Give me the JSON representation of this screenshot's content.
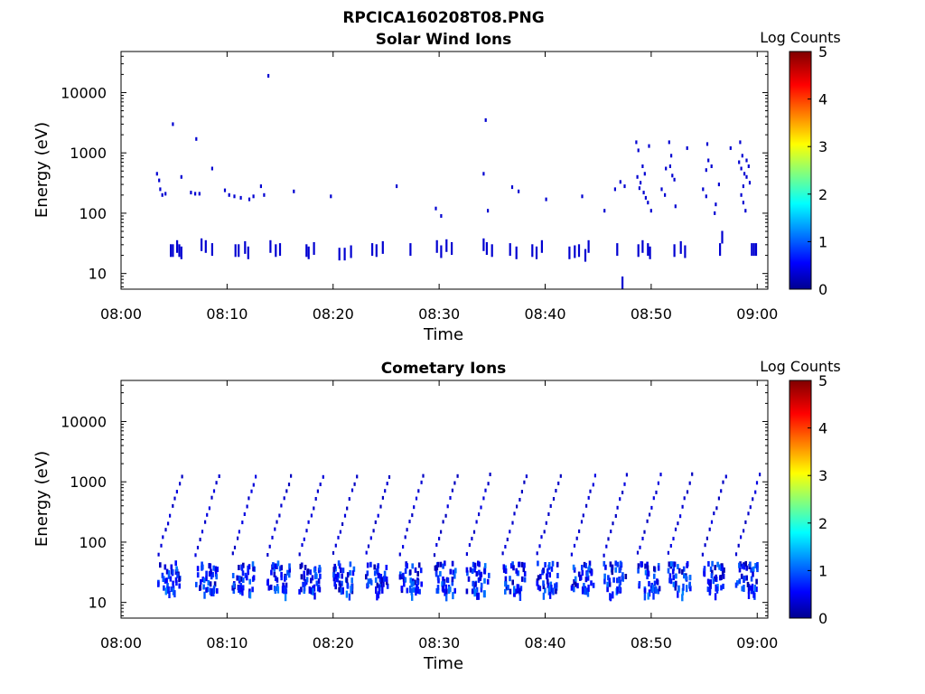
{
  "figure": {
    "title": "RPCICA160208T08.PNG"
  },
  "colorbar": {
    "label": "Log Counts",
    "ticks": [
      "0",
      "1",
      "2",
      "3",
      "4",
      "5"
    ],
    "range": [
      0,
      5
    ],
    "colormap": "jet"
  },
  "chart_data": [
    {
      "type": "heatmap",
      "title": "Solar Wind Ions",
      "xlabel": "Time",
      "ylabel": "Energy (eV)",
      "x_ticks": [
        "08:00",
        "08:10",
        "08:20",
        "08:30",
        "08:40",
        "08:50",
        "09:00"
      ],
      "x_range_minutes": [
        0,
        61
      ],
      "y_scale": "log",
      "y_ticks": [
        "10",
        "100",
        "1000",
        "10000"
      ],
      "y_range": [
        5.5,
        48000
      ],
      "z_label": "Log Counts",
      "z_range": [
        0,
        5
      ],
      "points": [
        [
          3.3,
          450,
          0.4
        ],
        [
          3.5,
          350,
          0.4
        ],
        [
          3.6,
          250,
          0.4
        ],
        [
          3.8,
          200,
          0.4
        ],
        [
          4.1,
          210,
          0.4
        ],
        [
          4.8,
          3000,
          0.4
        ],
        [
          5.6,
          400,
          0.4
        ],
        [
          6.5,
          220,
          0.4
        ],
        [
          6.9,
          210,
          0.4
        ],
        [
          7.0,
          1700,
          0.4
        ],
        [
          7.3,
          210,
          0.4
        ],
        [
          8.5,
          550,
          0.4
        ],
        [
          9.7,
          240,
          0.4
        ],
        [
          10.1,
          200,
          0.4
        ],
        [
          10.6,
          190,
          0.4
        ],
        [
          11.2,
          180,
          0.4
        ],
        [
          12.0,
          170,
          0.4
        ],
        [
          12.4,
          190,
          0.4
        ],
        [
          13.1,
          280,
          0.4
        ],
        [
          13.4,
          200,
          0.4
        ],
        [
          13.8,
          19000,
          0.4
        ],
        [
          16.2,
          230,
          0.4
        ],
        [
          19.7,
          190,
          0.4
        ],
        [
          25.9,
          280,
          0.4
        ],
        [
          29.6,
          120,
          0.4
        ],
        [
          30.1,
          90,
          0.4
        ],
        [
          34.1,
          450,
          0.4
        ],
        [
          34.3,
          3500,
          0.4
        ],
        [
          34.5,
          110,
          0.4
        ],
        [
          36.8,
          270,
          0.4
        ],
        [
          37.4,
          230,
          0.4
        ],
        [
          40.0,
          170,
          0.4
        ],
        [
          43.4,
          190,
          0.4
        ],
        [
          45.5,
          110,
          0.4
        ],
        [
          46.5,
          250,
          0.4
        ],
        [
          47.0,
          330,
          0.4
        ],
        [
          47.4,
          280,
          0.4
        ],
        [
          48.5,
          1500,
          0.4
        ],
        [
          48.7,
          1100,
          0.4
        ],
        [
          48.6,
          400,
          0.4
        ],
        [
          48.9,
          320,
          0.4
        ],
        [
          49.1,
          600,
          0.4
        ],
        [
          49.3,
          450,
          0.4
        ],
        [
          48.8,
          260,
          0.4
        ],
        [
          49.2,
          220,
          0.4
        ],
        [
          49.4,
          180,
          0.4
        ],
        [
          49.6,
          150,
          0.4
        ],
        [
          49.9,
          110,
          0.4
        ],
        [
          49.7,
          1300,
          0.4
        ],
        [
          50.9,
          250,
          0.4
        ],
        [
          51.2,
          200,
          0.4
        ],
        [
          51.6,
          1500,
          0.4
        ],
        [
          51.8,
          900,
          0.4
        ],
        [
          51.7,
          600,
          0.4
        ],
        [
          51.9,
          420,
          0.4
        ],
        [
          51.3,
          550,
          0.4
        ],
        [
          52.1,
          360,
          0.4
        ],
        [
          52.2,
          130,
          0.4
        ],
        [
          53.3,
          1200,
          0.4
        ],
        [
          55.2,
          1400,
          0.4
        ],
        [
          55.3,
          750,
          0.4
        ],
        [
          55.6,
          600,
          0.4
        ],
        [
          55.1,
          520,
          0.4
        ],
        [
          54.8,
          250,
          0.4
        ],
        [
          55.1,
          190,
          0.4
        ],
        [
          56.0,
          140,
          0.4
        ],
        [
          55.9,
          100,
          0.4
        ],
        [
          56.3,
          300,
          0.4
        ],
        [
          57.4,
          1200,
          0.4
        ],
        [
          58.3,
          1500,
          0.4
        ],
        [
          58.5,
          900,
          0.4
        ],
        [
          58.2,
          700,
          0.4
        ],
        [
          58.4,
          550,
          0.4
        ],
        [
          58.7,
          450,
          0.4
        ],
        [
          58.9,
          400,
          0.4
        ],
        [
          59.2,
          320,
          0.4
        ],
        [
          58.6,
          280,
          0.4
        ],
        [
          58.4,
          200,
          0.4
        ],
        [
          58.6,
          150,
          0.4
        ],
        [
          58.8,
          110,
          0.4
        ],
        [
          58.9,
          750,
          0.4
        ],
        [
          59.1,
          600,
          0.4
        ],
        [
          4.6,
          24,
          0.4
        ],
        [
          4.8,
          24,
          0.4
        ],
        [
          5.2,
          28,
          0.4
        ],
        [
          5.4,
          24,
          0.4
        ],
        [
          5.6,
          22,
          0.4
        ],
        [
          7.5,
          30,
          0.4
        ],
        [
          7.9,
          28,
          0.4
        ],
        [
          8.5,
          25,
          0.4
        ],
        [
          10.7,
          24,
          0.4
        ],
        [
          11.0,
          24,
          0.4
        ],
        [
          11.6,
          27,
          0.4
        ],
        [
          11.9,
          22,
          0.4
        ],
        [
          14.0,
          28,
          0.4
        ],
        [
          14.5,
          24,
          0.4
        ],
        [
          14.9,
          25,
          0.4
        ],
        [
          17.4,
          24,
          0.4
        ],
        [
          17.6,
          22,
          0.4
        ],
        [
          18.1,
          26,
          0.4
        ],
        [
          20.5,
          21,
          0.4
        ],
        [
          21.0,
          21,
          0.4
        ],
        [
          21.6,
          23,
          0.4
        ],
        [
          23.6,
          25,
          0.4
        ],
        [
          24.0,
          24,
          0.4
        ],
        [
          24.6,
          27,
          0.4
        ],
        [
          27.2,
          25,
          0.4
        ],
        [
          29.7,
          28,
          0.4
        ],
        [
          30.1,
          23,
          0.4
        ],
        [
          30.6,
          29,
          0.4
        ],
        [
          31.1,
          26,
          0.4
        ],
        [
          34.1,
          30,
          0.4
        ],
        [
          34.4,
          26,
          0.4
        ],
        [
          34.9,
          24,
          0.4
        ],
        [
          36.6,
          25,
          0.4
        ],
        [
          37.2,
          22,
          0.4
        ],
        [
          38.7,
          24,
          0.4
        ],
        [
          39.1,
          22,
          0.4
        ],
        [
          39.6,
          28,
          0.4
        ],
        [
          42.2,
          22,
          0.4
        ],
        [
          42.7,
          23,
          0.4
        ],
        [
          43.1,
          24,
          0.4
        ],
        [
          43.7,
          20,
          0.4
        ],
        [
          44.0,
          28,
          0.4
        ],
        [
          46.7,
          25,
          0.4
        ],
        [
          47.2,
          7,
          0.4
        ],
        [
          48.7,
          24,
          0.4
        ],
        [
          49.1,
          28,
          0.4
        ],
        [
          49.6,
          25,
          0.4
        ],
        [
          49.8,
          22,
          0.4
        ],
        [
          52.1,
          24,
          0.4
        ],
        [
          52.7,
          27,
          0.4
        ],
        [
          53.1,
          23,
          0.4
        ],
        [
          56.4,
          25,
          0.4
        ],
        [
          56.6,
          40,
          0.4
        ],
        [
          59.4,
          25,
          0.4
        ],
        [
          59.6,
          25,
          0.4
        ],
        [
          59.8,
          25,
          0.4
        ]
      ]
    },
    {
      "type": "heatmap",
      "title": "Cometary Ions",
      "xlabel": "Time",
      "ylabel": "Energy (eV)",
      "x_ticks": [
        "08:00",
        "08:10",
        "08:20",
        "08:30",
        "08:40",
        "08:50",
        "09:00"
      ],
      "x_range_minutes": [
        0,
        61
      ],
      "y_scale": "log",
      "y_ticks": [
        "10",
        "100",
        "1000",
        "10000"
      ],
      "y_range": [
        5.5,
        48000
      ],
      "z_label": "Log Counts",
      "z_range": [
        0,
        5
      ],
      "sweep_starts_minutes": [
        3.4,
        6.9,
        10.4,
        13.7,
        16.7,
        19.9,
        23.0,
        26.2,
        29.4,
        32.5,
        35.9,
        39.1,
        42.4,
        45.4,
        48.6,
        51.5,
        54.7,
        57.9
      ],
      "low_energy_band_ev": [
        15,
        45
      ]
    }
  ]
}
